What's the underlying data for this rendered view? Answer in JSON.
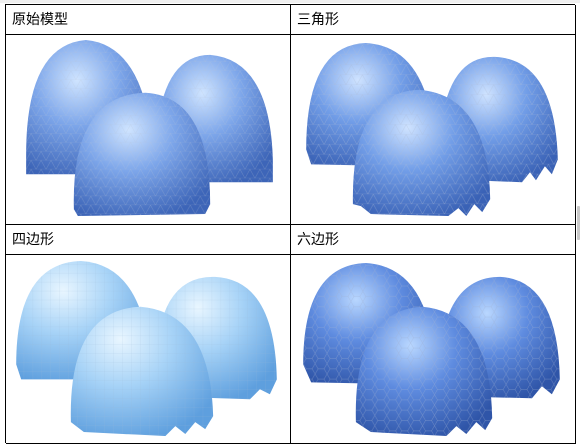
{
  "cells": [
    {
      "label": "原始模型",
      "style": "original",
      "tint": "#6d96e0"
    },
    {
      "label": "三角形",
      "style": "triangle",
      "tint": "#5f8be0"
    },
    {
      "label": "四边形",
      "style": "quad",
      "tint": "#8fc2f2"
    },
    {
      "label": "六边形",
      "style": "hexagon",
      "tint": "#4f7fd6"
    }
  ]
}
